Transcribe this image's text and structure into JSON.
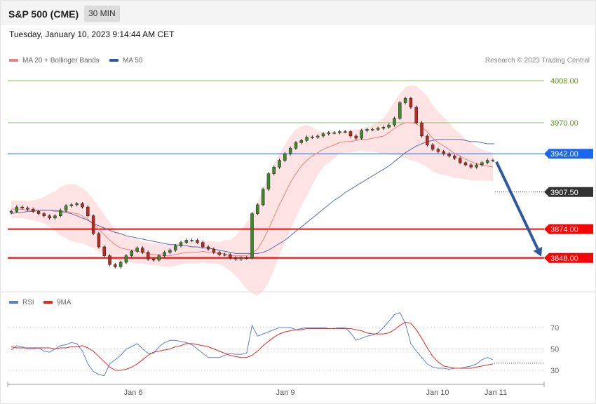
{
  "header": {
    "symbol": "S&P 500 (CME)",
    "interval": "30 MIN",
    "timestamp": "Tuesday, January 10, 2023 9:14:44 AM CET"
  },
  "legend": {
    "price": [
      {
        "label": "MA 20 + Bollinger Bands",
        "color": "#f08080"
      },
      {
        "label": "MA 50",
        "color": "#2d5a9e"
      }
    ],
    "rsi": [
      {
        "label": "RSI",
        "color": "#5b7fd6"
      },
      {
        "label": "9MA",
        "color": "#e8281e"
      }
    ],
    "credit": "Research © 2023 Trading Central"
  },
  "chart_data": [
    {
      "type": "candlestick",
      "price_range": [
        3820,
        4020
      ],
      "levels": [
        {
          "value": 4008.0,
          "label": "4008.00",
          "kind": "resistance-thin",
          "color": "#8dc26a",
          "text_color": "#5a9a1e"
        },
        {
          "value": 3970.0,
          "label": "3970.00",
          "kind": "resistance-thin",
          "color": "#8dc26a",
          "text_color": "#5a9a1e"
        },
        {
          "value": 3942.0,
          "label": "3942.00",
          "kind": "pivot",
          "color": "#1a66f0"
        },
        {
          "value": 3907.5,
          "label": "3907.50",
          "kind": "last-price",
          "color": "#333333"
        },
        {
          "value": 3874.0,
          "label": "3874.00",
          "kind": "support",
          "color": "#ff0000"
        },
        {
          "value": 3848.0,
          "label": "3848.00",
          "kind": "support",
          "color": "#ff0000"
        }
      ],
      "closes": [
        3890,
        3894,
        3893,
        3892,
        3890,
        3888,
        3886,
        3884,
        3886,
        3891,
        3895,
        3896,
        3897,
        3894,
        3886,
        3870,
        3858,
        3850,
        3842,
        3840,
        3844,
        3850,
        3854,
        3857,
        3853,
        3847,
        3846,
        3850,
        3853,
        3855,
        3859,
        3862,
        3864,
        3864,
        3862,
        3858,
        3856,
        3853,
        3851,
        3851,
        3848,
        3847,
        3848,
        3848,
        3888,
        3896,
        3910,
        3924,
        3930,
        3936,
        3942,
        3947,
        3952,
        3954,
        3957,
        3957,
        3958,
        3960,
        3961,
        3961,
        3962,
        3962,
        3958,
        3956,
        3963,
        3964,
        3964,
        3965,
        3966,
        3968,
        3974,
        3988,
        3992,
        3984,
        3970,
        3958,
        3950,
        3946,
        3944,
        3942,
        3940,
        3938,
        3934,
        3932,
        3930,
        3932,
        3934,
        3936,
        3936
      ],
      "ma20": [
        3892,
        3892,
        3892,
        3891,
        3891,
        3891,
        3891,
        3891,
        3890,
        3890,
        3890,
        3889,
        3888,
        3886,
        3883,
        3879,
        3874,
        3869,
        3864,
        3860,
        3857,
        3856,
        3855,
        3854,
        3853,
        3852,
        3851,
        3851,
        3850,
        3850,
        3851,
        3852,
        3853,
        3853,
        3853,
        3854,
        3853,
        3853,
        3852,
        3852,
        3850,
        3850,
        3850,
        3850,
        3852,
        3856,
        3864,
        3874,
        3885,
        3896,
        3906,
        3916,
        3924,
        3931,
        3936,
        3940,
        3943,
        3946,
        3948,
        3950,
        3952,
        3953,
        3953,
        3954,
        3955,
        3955,
        3956,
        3957,
        3958,
        3961,
        3965,
        3968,
        3970,
        3970,
        3969,
        3966,
        3962,
        3956,
        3952,
        3949,
        3946,
        3942,
        3940,
        3937,
        3935,
        3933,
        3932,
        3931,
        3930
      ],
      "ma50": [
        3888,
        3889,
        3889,
        3890,
        3890,
        3891,
        3891,
        3891,
        3891,
        3890,
        3889,
        3888,
        3886,
        3884,
        3882,
        3879,
        3877,
        3875,
        3873,
        3871,
        3870,
        3868,
        3867,
        3866,
        3865,
        3864,
        3863,
        3862,
        3861,
        3860,
        3860,
        3859,
        3859,
        3858,
        3858,
        3857,
        3857,
        3856,
        3855,
        3854,
        3853,
        3852,
        3852,
        3852,
        3852,
        3852,
        3853,
        3855,
        3858,
        3861,
        3864,
        3868,
        3872,
        3876,
        3880,
        3884,
        3888,
        3892,
        3896,
        3900,
        3903,
        3907,
        3910,
        3913,
        3916,
        3919,
        3922,
        3925,
        3928,
        3931,
        3935,
        3939,
        3943,
        3946,
        3949,
        3951,
        3953,
        3954,
        3955,
        3955,
        3955,
        3955,
        3955,
        3954,
        3953,
        3953,
        3952,
        3951,
        3951
      ],
      "bb_half_width": [
        8,
        8,
        8,
        8,
        9,
        10,
        12,
        15,
        18,
        22,
        24,
        26,
        26,
        25,
        24,
        22,
        20,
        18,
        16,
        14,
        13,
        12,
        11,
        11,
        10,
        10,
        10,
        10,
        10,
        10,
        10,
        10,
        10,
        10,
        10,
        10,
        10,
        10,
        10,
        12,
        14,
        18,
        24,
        30,
        36,
        42,
        46,
        48,
        48,
        46,
        44,
        42,
        40,
        36,
        32,
        26,
        20,
        16,
        14,
        12,
        10,
        10,
        10,
        10,
        10,
        11,
        12,
        14,
        16,
        20,
        24,
        28,
        32,
        34,
        34,
        33,
        32,
        30,
        28,
        26,
        24,
        22,
        20,
        18,
        17,
        15,
        14,
        13,
        13
      ]
    },
    {
      "type": "line",
      "name": "RSI",
      "y_ticks": [
        70,
        50,
        30
      ],
      "x_tick_labels": [
        "Jan 6",
        "Jan 9",
        "Jan 10",
        "Jan 11"
      ],
      "rsi": [
        49,
        53,
        52,
        50,
        50,
        51,
        48,
        47,
        50,
        53,
        54,
        56,
        55,
        48,
        36,
        29,
        26,
        25,
        36,
        40,
        44,
        50,
        52,
        55,
        50,
        46,
        46,
        52,
        56,
        58,
        58,
        57,
        56,
        54,
        50,
        46,
        42,
        42,
        42,
        44,
        46,
        45,
        45,
        46,
        72,
        62,
        64,
        66,
        68,
        70,
        70,
        70,
        68,
        69,
        70,
        70,
        70,
        70,
        69,
        69,
        70,
        70,
        65,
        58,
        60,
        62,
        63,
        65,
        70,
        76,
        82,
        84,
        74,
        55,
        48,
        42,
        36,
        33,
        32,
        32,
        31,
        32,
        32,
        33,
        34,
        36,
        40,
        42,
        40
      ],
      "ma9": [
        52,
        51,
        51,
        51,
        51,
        51,
        51,
        51,
        50,
        51,
        51,
        52,
        52,
        53,
        51,
        48,
        43,
        38,
        33,
        30,
        30,
        31,
        33,
        36,
        40,
        44,
        47,
        48,
        49,
        50,
        52,
        53,
        55,
        55,
        54,
        53,
        52,
        50,
        48,
        46,
        44,
        43,
        42,
        42,
        44,
        48,
        53,
        57,
        61,
        64,
        66,
        67,
        68,
        68,
        69,
        69,
        69,
        69,
        69,
        69,
        69,
        69,
        69,
        68,
        67,
        65,
        64,
        64,
        64,
        65,
        68,
        72,
        75,
        74,
        68,
        60,
        51,
        43,
        38,
        34,
        33,
        32,
        32,
        32,
        32,
        33,
        34,
        35,
        36
      ]
    }
  ]
}
